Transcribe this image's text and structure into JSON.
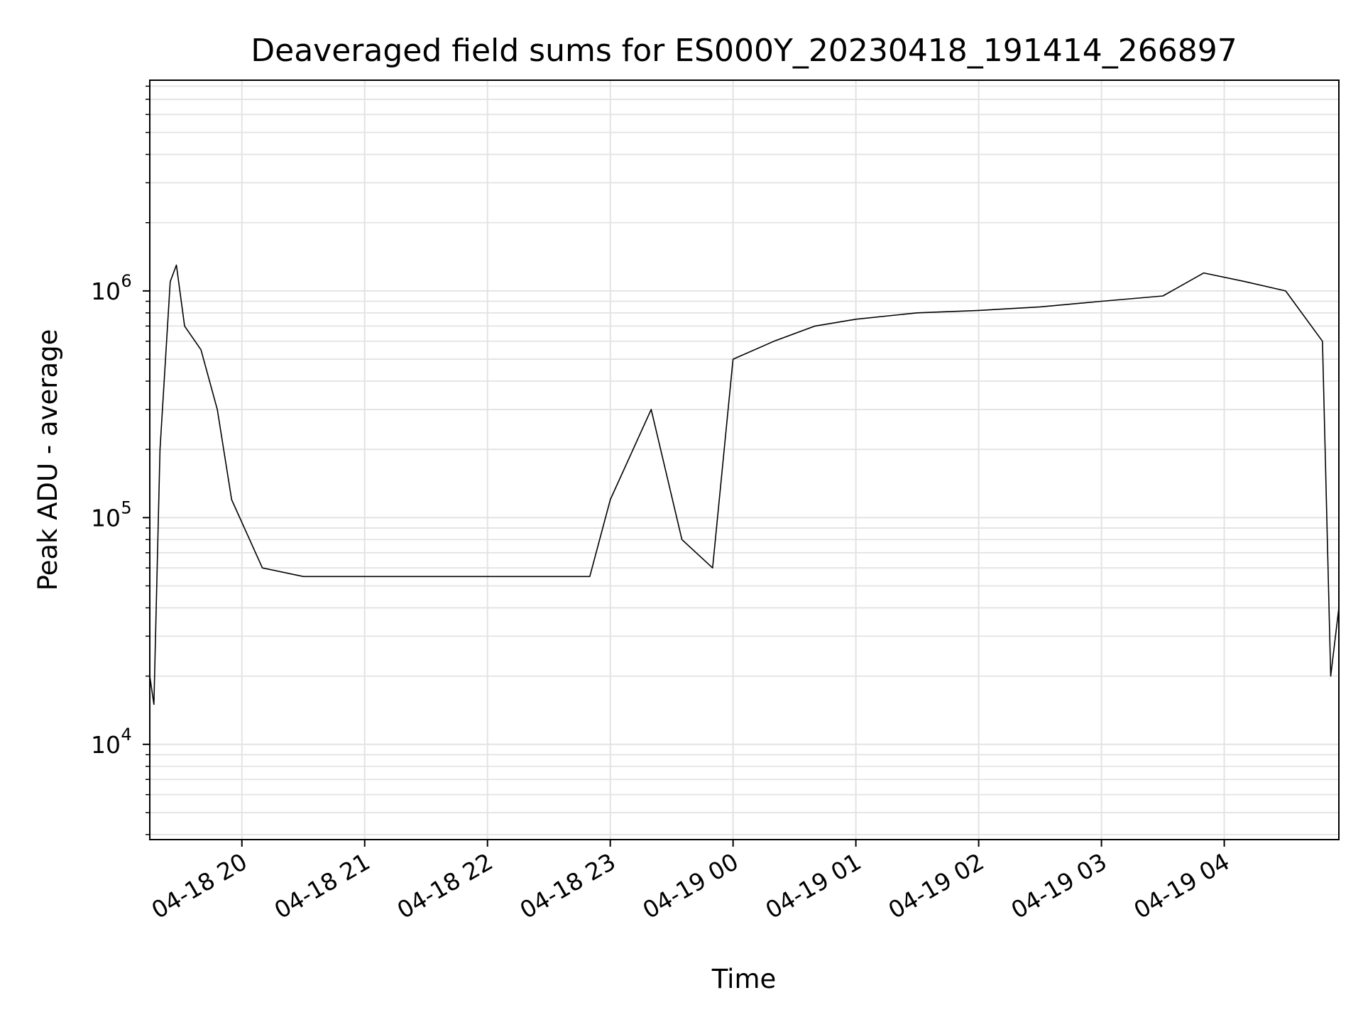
{
  "chart_data": {
    "type": "line",
    "title": "Deaveraged field sums for ES000Y_20230418_191414_266897",
    "xlabel": "Time",
    "ylabel": "Peak ADU - average",
    "yscale": "log",
    "ylim": [
      3800,
      8500000
    ],
    "y_ticks": [
      {
        "base": "10",
        "exp": "4",
        "value": 10000
      },
      {
        "base": "10",
        "exp": "5",
        "value": 100000
      },
      {
        "base": "10",
        "exp": "6",
        "value": 1000000
      }
    ],
    "x_range_hours": [
      "2023-04-18 19:15",
      "2023-04-19 04:56"
    ],
    "x_ticks": [
      "04-18 20",
      "04-18 21",
      "04-18 22",
      "04-18 23",
      "04-19 00",
      "04-19 01",
      "04-19 02",
      "04-19 03",
      "04-19 04"
    ],
    "grid": true,
    "series": [
      {
        "color": "#000000",
        "x": [
          "2023-04-18 19:15",
          "2023-04-18 19:17",
          "2023-04-18 19:20",
          "2023-04-18 19:25",
          "2023-04-18 19:28",
          "2023-04-18 19:32",
          "2023-04-18 19:40",
          "2023-04-18 19:48",
          "2023-04-18 19:55",
          "2023-04-18 20:10",
          "2023-04-18 20:30",
          "2023-04-18 20:50",
          "2023-04-18 21:10",
          "2023-04-18 21:30",
          "2023-04-18 21:50",
          "2023-04-18 22:10",
          "2023-04-18 22:30",
          "2023-04-18 22:50",
          "2023-04-18 23:00",
          "2023-04-18 23:20",
          "2023-04-18 23:35",
          "2023-04-18 23:50",
          "2023-04-19 00:00",
          "2023-04-19 00:20",
          "2023-04-19 00:40",
          "2023-04-19 01:00",
          "2023-04-19 01:30",
          "2023-04-19 02:00",
          "2023-04-19 02:30",
          "2023-04-19 03:00",
          "2023-04-19 03:30",
          "2023-04-19 03:50",
          "2023-04-19 04:10",
          "2023-04-19 04:30",
          "2023-04-19 04:48",
          "2023-04-19 04:52",
          "2023-04-19 04:56"
        ],
        "y": [
          20000,
          15000,
          200000,
          1100000,
          1300000,
          700000,
          550000,
          300000,
          120000,
          60000,
          55000,
          55000,
          55000,
          55000,
          55000,
          55000,
          55000,
          55000,
          120000,
          300000,
          80000,
          60000,
          500000,
          600000,
          700000,
          750000,
          800000,
          820000,
          850000,
          900000,
          950000,
          1200000,
          1100000,
          1000000,
          600000,
          20000,
          40000
        ]
      }
    ]
  }
}
